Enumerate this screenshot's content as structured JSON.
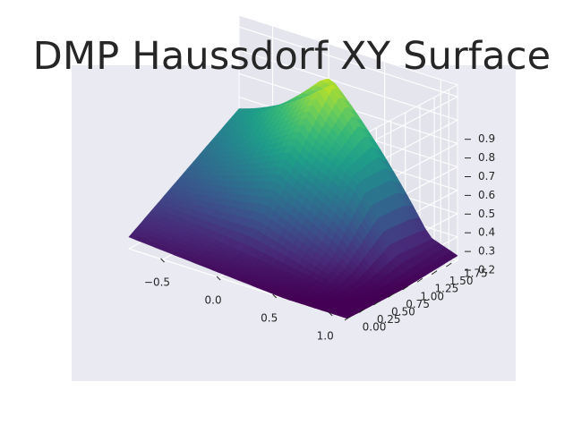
{
  "chart_data": {
    "type": "surface3d",
    "title": "DMP Haussdorf XY Surface",
    "xlabel": "",
    "ylabel": "",
    "zlabel": "",
    "x_ticks": [
      "−0.5",
      "0.0",
      "0.5",
      "1.0"
    ],
    "y_ticks": [
      "0.00",
      "0.25",
      "0.50",
      "0.75",
      "1.00",
      "1.25",
      "1.50",
      "1.75"
    ],
    "z_ticks": [
      "0.2",
      "0.3",
      "0.4",
      "0.5",
      "0.6",
      "0.7",
      "0.8",
      "0.9"
    ],
    "xlim": [
      -0.8,
      1.15
    ],
    "ylim": [
      0.0,
      1.9
    ],
    "zlim": [
      0.2,
      0.95
    ],
    "colormap": "viridis",
    "grid": true,
    "background": "#eaeaf2",
    "corners": {
      "x_min_y_min": 0.25,
      "x_max_y_min": 0.18,
      "x_min_y_max": 0.55,
      "x_max_y_max": 0.22
    },
    "peak": {
      "x": 0.05,
      "y": 1.75,
      "z": 0.85
    }
  }
}
